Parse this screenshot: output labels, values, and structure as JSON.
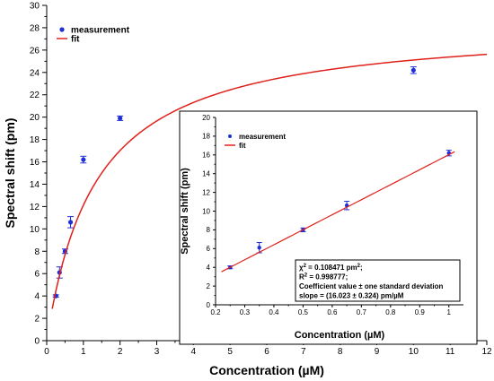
{
  "colors": {
    "measurement": "#1f2fd6",
    "fit": "#e0201a",
    "axis": "#000000"
  },
  "chart_data": [
    {
      "type": "scatter",
      "name": "main",
      "xlabel": "Concentration (µM)",
      "ylabel": "Spectral shift (pm)",
      "xlim": [
        0,
        12
      ],
      "ylim": [
        0,
        30
      ],
      "xticks": [
        0,
        1,
        2,
        3,
        4,
        5,
        6,
        7,
        8,
        9,
        10,
        11,
        12
      ],
      "yticks": [
        0,
        2,
        4,
        6,
        8,
        10,
        12,
        14,
        16,
        18,
        20,
        22,
        24,
        26,
        28,
        30
      ],
      "legend": {
        "position": "top-left",
        "entries": [
          "measurement",
          "fit"
        ]
      },
      "series": [
        {
          "name": "measurement",
          "kind": "points",
          "x": [
            0.25,
            0.35,
            0.5,
            0.65,
            1.0,
            2.0,
            10.0
          ],
          "y": [
            4.0,
            6.1,
            8.0,
            10.6,
            16.2,
            19.9,
            24.2
          ],
          "err": [
            0.1,
            0.5,
            0.2,
            0.5,
            0.3,
            0.2,
            0.3
          ]
        },
        {
          "name": "fit",
          "kind": "line",
          "model": "langmuir",
          "params": {
            "smax": 28.5,
            "kd": 1.35
          },
          "x_range": [
            0.15,
            12
          ]
        }
      ]
    },
    {
      "type": "scatter",
      "name": "inset",
      "xlabel": "Concentration (µM)",
      "ylabel": "Spectral shift (pm)",
      "xlim": [
        0.2,
        1.05
      ],
      "ylim": [
        0,
        20
      ],
      "xticks": [
        0.2,
        0.3,
        0.4,
        0.5,
        0.6,
        0.7,
        0.8,
        0.9,
        1.0
      ],
      "yticks": [
        0,
        2,
        4,
        6,
        8,
        10,
        12,
        14,
        16,
        18,
        20
      ],
      "legend": {
        "position": "top-left",
        "entries": [
          "measurement",
          "fit"
        ]
      },
      "series": [
        {
          "name": "measurement",
          "kind": "points",
          "x": [
            0.25,
            0.35,
            0.5,
            0.65,
            1.0
          ],
          "y": [
            4.0,
            6.1,
            8.0,
            10.6,
            16.2
          ],
          "err": [
            0.15,
            0.55,
            0.2,
            0.45,
            0.3
          ]
        },
        {
          "name": "fit",
          "kind": "line",
          "model": "linear",
          "params": {
            "slope": 16.023,
            "intercept": 0.0
          },
          "x_range": [
            0.22,
            1.02
          ]
        }
      ],
      "annotation": {
        "lines": [
          {
            "base": "χ",
            "sup": "2",
            "rest": " = 0.108471 pm",
            "sup2": "2",
            "tail": ";"
          },
          {
            "base": "R",
            "sup": "2",
            "rest": " = 0.998777;",
            "sup2": "",
            "tail": ""
          },
          {
            "base": "Coefficient value ± one standard deviation",
            "sup": "",
            "rest": "",
            "sup2": "",
            "tail": ""
          },
          {
            "base": "slope = (16.023 ± 0.324) pm/µM",
            "sup": "",
            "rest": "",
            "sup2": "",
            "tail": ""
          }
        ]
      }
    }
  ]
}
